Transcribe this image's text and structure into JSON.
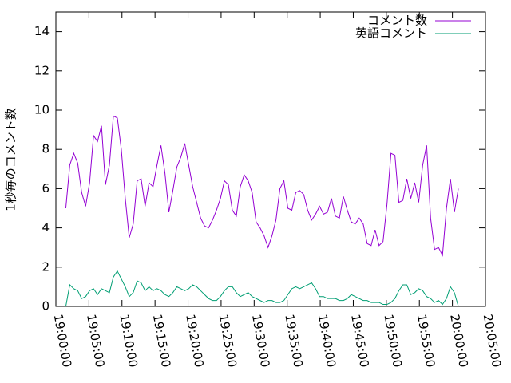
{
  "chart_data": {
    "type": "line",
    "y_label": "1秒毎のコメント数",
    "x": [
      "19:01:30",
      "19:02:06",
      "19:02:42",
      "19:03:18",
      "19:03:54",
      "19:04:30",
      "19:05:06",
      "19:05:42",
      "19:06:18",
      "19:06:54",
      "19:07:30",
      "19:08:06",
      "19:08:42",
      "19:09:18",
      "19:09:54",
      "19:10:30",
      "19:11:06",
      "19:11:42",
      "19:12:18",
      "19:12:54",
      "19:13:30",
      "19:14:06",
      "19:14:42",
      "19:15:18",
      "19:15:54",
      "19:16:30",
      "19:17:06",
      "19:17:42",
      "19:18:18",
      "19:18:54",
      "19:19:30",
      "19:20:06",
      "19:20:42",
      "19:21:18",
      "19:21:54",
      "19:22:30",
      "19:23:06",
      "19:23:42",
      "19:24:18",
      "19:24:54",
      "19:25:30",
      "19:26:06",
      "19:26:42",
      "19:27:18",
      "19:27:54",
      "19:28:30",
      "19:29:06",
      "19:29:42",
      "19:30:18",
      "19:30:54",
      "19:31:30",
      "19:32:06",
      "19:32:42",
      "19:33:18",
      "19:33:54",
      "19:34:30",
      "19:35:06",
      "19:35:42",
      "19:36:18",
      "19:36:54",
      "19:37:30",
      "19:38:06",
      "19:38:42",
      "19:39:18",
      "19:39:54",
      "19:40:30",
      "19:41:06",
      "19:41:42",
      "19:42:18",
      "19:42:54",
      "19:43:30",
      "19:44:06",
      "19:44:42",
      "19:45:18",
      "19:45:54",
      "19:46:30",
      "19:47:06",
      "19:47:42",
      "19:48:18",
      "19:48:54",
      "19:49:30",
      "19:50:06",
      "19:50:42",
      "19:51:18",
      "19:51:54",
      "19:52:30",
      "19:53:06",
      "19:53:42",
      "19:54:18",
      "19:54:54",
      "19:55:30",
      "19:56:06",
      "19:56:42",
      "19:57:18",
      "19:57:54",
      "19:58:30",
      "19:59:06",
      "19:59:42",
      "20:00:18",
      "20:00:54"
    ],
    "series": [
      {
        "name": "コメント数",
        "color": "#9400d3",
        "values": [
          5.0,
          7.2,
          7.8,
          7.3,
          5.8,
          5.1,
          6.3,
          8.7,
          8.4,
          9.2,
          6.2,
          7.2,
          9.7,
          9.6,
          8.0,
          5.5,
          3.5,
          4.2,
          6.4,
          6.5,
          5.1,
          6.3,
          6.1,
          7.2,
          8.2,
          6.8,
          4.8,
          5.9,
          7.1,
          7.6,
          8.3,
          7.2,
          6.1,
          5.3,
          4.5,
          4.1,
          4.0,
          4.4,
          4.9,
          5.5,
          6.4,
          6.2,
          4.9,
          4.6,
          6.1,
          6.7,
          6.4,
          5.8,
          4.3,
          4.0,
          3.6,
          3.0,
          3.6,
          4.4,
          6.0,
          6.4,
          5.0,
          4.9,
          5.8,
          5.9,
          5.7,
          4.9,
          4.4,
          4.7,
          5.1,
          4.7,
          4.8,
          5.5,
          4.6,
          4.5,
          5.6,
          4.9,
          4.3,
          4.2,
          4.5,
          4.2,
          3.2,
          3.1,
          3.9,
          3.1,
          3.3,
          5.2,
          7.8,
          7.7,
          5.3,
          5.4,
          6.5,
          5.5,
          6.3,
          5.3,
          7.2,
          8.2,
          4.5,
          2.9,
          3.0,
          2.6,
          5.0,
          6.5,
          4.8,
          6.0
        ]
      },
      {
        "name": "英語コメント",
        "color": "#009e73",
        "values": [
          0.0,
          1.1,
          0.9,
          0.8,
          0.4,
          0.5,
          0.8,
          0.9,
          0.6,
          0.9,
          0.8,
          0.7,
          1.5,
          1.8,
          1.4,
          1.0,
          0.5,
          0.7,
          1.3,
          1.2,
          0.8,
          1.0,
          0.8,
          0.9,
          0.8,
          0.6,
          0.5,
          0.7,
          1.0,
          0.9,
          0.8,
          0.9,
          1.1,
          1.0,
          0.8,
          0.6,
          0.4,
          0.3,
          0.3,
          0.5,
          0.8,
          1.0,
          1.0,
          0.7,
          0.5,
          0.6,
          0.7,
          0.5,
          0.4,
          0.3,
          0.2,
          0.3,
          0.3,
          0.2,
          0.2,
          0.3,
          0.6,
          0.9,
          1.0,
          0.9,
          1.0,
          1.1,
          1.2,
          0.9,
          0.5,
          0.5,
          0.4,
          0.4,
          0.4,
          0.3,
          0.3,
          0.4,
          0.6,
          0.5,
          0.4,
          0.3,
          0.3,
          0.2,
          0.2,
          0.2,
          0.1,
          0.1,
          0.2,
          0.4,
          0.8,
          1.1,
          1.1,
          0.6,
          0.7,
          0.9,
          0.8,
          0.5,
          0.4,
          0.2,
          0.3,
          0.1,
          0.4,
          1.0,
          0.7,
          0.0
        ]
      }
    ],
    "xlim": [
      "19:00:00",
      "20:05:00"
    ],
    "xticks": [
      "19:00:00",
      "19:05:00",
      "19:10:00",
      "19:15:00",
      "19:20:00",
      "19:25:00",
      "19:30:00",
      "19:35:00",
      "19:40:00",
      "19:45:00",
      "19:50:00",
      "19:55:00",
      "20:00:00",
      "20:05:00"
    ],
    "ylim": [
      0,
      15
    ],
    "yticks": [
      0,
      2,
      4,
      6,
      8,
      10,
      12,
      14
    ],
    "legend": "top-right"
  }
}
